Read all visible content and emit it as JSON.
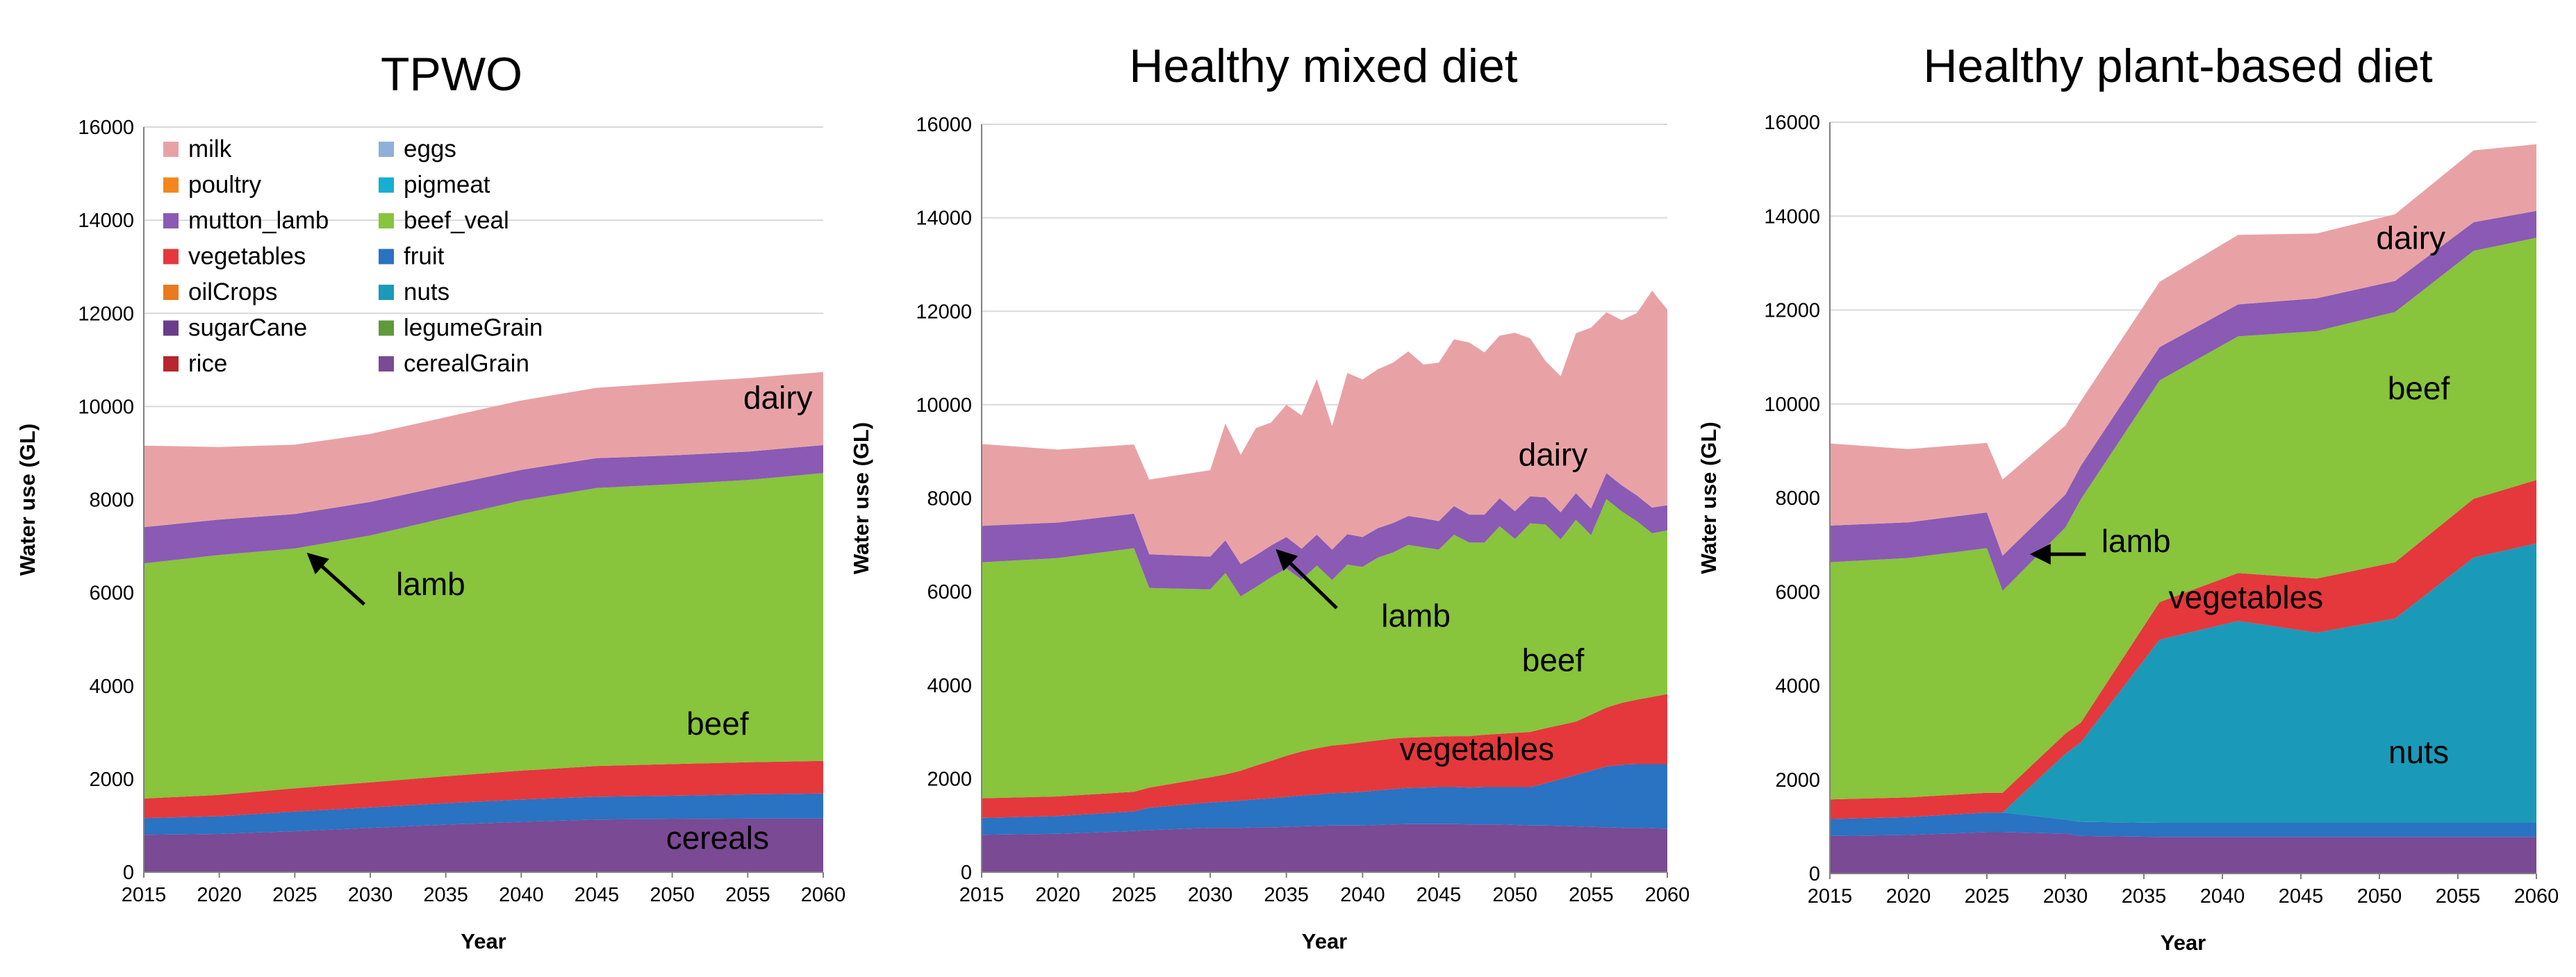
{
  "colors": {
    "cerealGrain": "#7a4a94",
    "legumeGrain": "#5e9a3a",
    "rice": "#b8252c",
    "sugarCane": "#6a3d8a",
    "oilCrops": "#e97a1e",
    "nuts": "#1a9ab8",
    "fruit": "#2a72c2",
    "vegetables": "#e4383c",
    "beef_veal": "#88c43c",
    "mutton_lamb": "#8a5ab4",
    "pigmeat": "#16aed1",
    "poultry": "#f4861e",
    "eggs": "#8fb0d8",
    "milk": "#e8a2a6",
    "grid": "#d9d9d9",
    "axis": "#808080",
    "arrow": "#000000"
  },
  "legend": {
    "left": [
      "milk",
      "poultry",
      "mutton_lamb",
      "vegetables",
      "oilCrops",
      "sugarCane",
      "rice"
    ],
    "right": [
      "eggs",
      "pigmeat",
      "beef_veal",
      "fruit",
      "nuts",
      "legumeGrain",
      "cerealGrain"
    ]
  },
  "chart_data": [
    {
      "type": "area",
      "stacked": true,
      "title": "TPWO",
      "xlabel": "Year",
      "ylabel": "Water use (GL)",
      "xlim": [
        2015,
        2060
      ],
      "ylim": [
        0,
        16000
      ],
      "xticks": [
        "2015",
        "2020",
        "2025",
        "2030",
        "2035",
        "2040",
        "2045",
        "2050",
        "2055",
        "2060"
      ],
      "yticks": [
        "0",
        "2000",
        "4000",
        "6000",
        "8000",
        "10000",
        "12000",
        "14000",
        "16000"
      ],
      "grid": true,
      "legend_position": "top-left",
      "x": [
        2015,
        2020,
        2025,
        2030,
        2035,
        2040,
        2045,
        2050,
        2055,
        2060
      ],
      "series": [
        {
          "name": "cerealGrain",
          "values": [
            800,
            820,
            880,
            950,
            1020,
            1080,
            1130,
            1140,
            1150,
            1150
          ]
        },
        {
          "name": "fruit",
          "values": [
            360,
            380,
            420,
            440,
            460,
            480,
            490,
            500,
            520,
            540
          ]
        },
        {
          "name": "vegetables",
          "values": [
            420,
            460,
            500,
            540,
            580,
            620,
            660,
            680,
            690,
            700
          ]
        },
        {
          "name": "beef_veal",
          "values": [
            5050,
            5150,
            5150,
            5300,
            5550,
            5800,
            5970,
            6010,
            6060,
            6180
          ]
        },
        {
          "name": "mutton_lamb",
          "values": [
            780,
            760,
            740,
            720,
            690,
            660,
            640,
            620,
            610,
            600
          ]
        },
        {
          "name": "milk",
          "values": [
            1750,
            1560,
            1490,
            1460,
            1470,
            1490,
            1510,
            1560,
            1580,
            1570
          ]
        }
      ],
      "annotations": [
        {
          "text": "dairy",
          "x": 2057,
          "y": 9950
        },
        {
          "text": "lamb",
          "x": 2034,
          "y": 5950,
          "arrow_to": [
            2026,
            6800
          ],
          "arrow_from": [
            2029.6,
            5750
          ]
        },
        {
          "text": "beef",
          "x": 2053,
          "y": 2950
        },
        {
          "text": "cereals",
          "x": 2053,
          "y": 500
        }
      ]
    },
    {
      "type": "area",
      "stacked": true,
      "title": "Healthy mixed diet",
      "xlabel": "Year",
      "ylabel": "Water use (GL)",
      "xlim": [
        2015,
        2060
      ],
      "ylim": [
        0,
        16000
      ],
      "xticks": [
        "2015",
        "2020",
        "2025",
        "2030",
        "2035",
        "2040",
        "2045",
        "2050",
        "2055",
        "2060"
      ],
      "yticks": [
        "0",
        "2000",
        "4000",
        "6000",
        "8000",
        "10000",
        "12000",
        "14000",
        "16000"
      ],
      "grid": true,
      "x": [
        2015,
        2020,
        2025,
        2026,
        2030,
        2031,
        2032,
        2033,
        2034,
        2035,
        2036,
        2037,
        2038,
        2039,
        2040,
        2041,
        2042,
        2043,
        2044,
        2045,
        2046,
        2047,
        2048,
        2049,
        2050,
        2051,
        2052,
        2053,
        2054,
        2055,
        2056,
        2057,
        2058,
        2059,
        2060
      ],
      "series": [
        {
          "name": "cerealGrain",
          "values": [
            800,
            820,
            880,
            900,
            950,
            950,
            950,
            960,
            960,
            970,
            980,
            990,
            1000,
            1000,
            1000,
            1010,
            1020,
            1030,
            1030,
            1030,
            1030,
            1020,
            1020,
            1020,
            1010,
            1000,
            1000,
            990,
            980,
            970,
            960,
            950,
            950,
            940,
            930
          ]
        },
        {
          "name": "fruit",
          "values": [
            360,
            380,
            420,
            480,
            540,
            560,
            580,
            600,
            620,
            640,
            660,
            670,
            690,
            700,
            720,
            740,
            760,
            770,
            780,
            790,
            790,
            790,
            800,
            800,
            810,
            820,
            900,
            1000,
            1100,
            1200,
            1300,
            1350,
            1360,
            1370,
            1380
          ]
        },
        {
          "name": "vegetables",
          "values": [
            420,
            420,
            420,
            430,
            540,
            580,
            640,
            720,
            800,
            880,
            940,
            990,
            1020,
            1040,
            1060,
            1070,
            1080,
            1080,
            1080,
            1080,
            1090,
            1100,
            1120,
            1140,
            1160,
            1180,
            1180,
            1160,
            1140,
            1200,
            1260,
            1320,
            1380,
            1440,
            1500
          ]
        },
        {
          "name": "beef_veal",
          "values": [
            5050,
            5100,
            5210,
            4270,
            4020,
            4310,
            3730,
            3820,
            3930,
            4010,
            3680,
            3910,
            3540,
            3840,
            3750,
            3910,
            3980,
            4120,
            4060,
            4000,
            4310,
            4140,
            4110,
            4440,
            4150,
            4460,
            4360,
            3970,
            4320,
            3840,
            4460,
            4100,
            3820,
            3500,
            3500
          ]
        },
        {
          "name": "mutton_lamb",
          "values": [
            780,
            760,
            740,
            720,
            700,
            700,
            690,
            680,
            680,
            670,
            660,
            660,
            650,
            650,
            640,
            630,
            630,
            620,
            620,
            610,
            610,
            600,
            600,
            600,
            590,
            580,
            580,
            580,
            570,
            570,
            560,
            560,
            550,
            550,
            540
          ]
        },
        {
          "name": "milk",
          "values": [
            1750,
            1560,
            1480,
            1600,
            1850,
            2500,
            2340,
            2720,
            2630,
            2830,
            2850,
            3330,
            2640,
            3450,
            3370,
            3400,
            3430,
            3520,
            3290,
            3390,
            3570,
            3680,
            3470,
            3480,
            3820,
            3380,
            2920,
            2910,
            3420,
            3870,
            3440,
            3530,
            3900,
            4640,
            4190
          ]
        }
      ],
      "annotations": [
        {
          "text": "dairy",
          "x": 2052.5,
          "y": 8700
        },
        {
          "text": "lamb",
          "x": 2043.5,
          "y": 5250,
          "arrow_to": [
            2034.5,
            6850
          ],
          "arrow_from": [
            2038.3,
            5650
          ]
        },
        {
          "text": "beef",
          "x": 2052.5,
          "y": 4300
        },
        {
          "text": "vegetables",
          "x": 2047.5,
          "y": 2400
        }
      ]
    },
    {
      "type": "area",
      "stacked": true,
      "title": "Healthy plant-based diet",
      "xlabel": "Year",
      "ylabel": "Water use (GL)",
      "xlim": [
        2015,
        2060
      ],
      "ylim": [
        0,
        16000
      ],
      "xticks": [
        "2015",
        "2020",
        "2025",
        "2030",
        "2035",
        "2040",
        "2045",
        "2050",
        "2055",
        "2060"
      ],
      "yticks": [
        "0",
        "2000",
        "4000",
        "6000",
        "8000",
        "10000",
        "12000",
        "14000",
        "16000"
      ],
      "grid": true,
      "x": [
        2015,
        2020,
        2025,
        2026,
        2030,
        2031,
        2036,
        2041,
        2046,
        2051,
        2056,
        2060
      ],
      "series": [
        {
          "name": "cerealGrain",
          "values": [
            800,
            820,
            880,
            880,
            850,
            800,
            780,
            780,
            780,
            780,
            780,
            780
          ]
        },
        {
          "name": "fruit",
          "values": [
            360,
            380,
            420,
            420,
            300,
            300,
            300,
            300,
            300,
            300,
            300,
            300
          ]
        },
        {
          "name": "nuts",
          "values": [
            0,
            0,
            0,
            0,
            1400,
            1700,
            3900,
            4300,
            4050,
            4350,
            5650,
            5950
          ]
        },
        {
          "name": "vegetables",
          "values": [
            420,
            420,
            420,
            420,
            430,
            420,
            800,
            1020,
            1150,
            1200,
            1250,
            1350
          ]
        },
        {
          "name": "beef_veal",
          "values": [
            5050,
            5100,
            5210,
            4300,
            4390,
            4760,
            4720,
            5040,
            5270,
            5330,
            5280,
            5160
          ]
        },
        {
          "name": "mutton_lamb",
          "values": [
            780,
            760,
            760,
            750,
            700,
            710,
            710,
            680,
            700,
            660,
            610,
            570
          ]
        },
        {
          "name": "milk",
          "values": [
            1750,
            1560,
            1480,
            1620,
            1470,
            1380,
            1390,
            1480,
            1380,
            1420,
            1530,
            1420
          ]
        }
      ],
      "annotations": [
        {
          "text": "dairy",
          "x": 2052,
          "y": 13300
        },
        {
          "text": "lamb",
          "x": 2034.5,
          "y": 6850,
          "arrow_to": [
            2028,
            6800
          ],
          "arrow_from": [
            2031.3,
            6800
          ]
        },
        {
          "text": "vegetables",
          "x": 2041.5,
          "y": 5650
        },
        {
          "text": "beef",
          "x": 2052.5,
          "y": 10100
        },
        {
          "text": "nuts",
          "x": 2052.5,
          "y": 2350
        }
      ]
    }
  ]
}
